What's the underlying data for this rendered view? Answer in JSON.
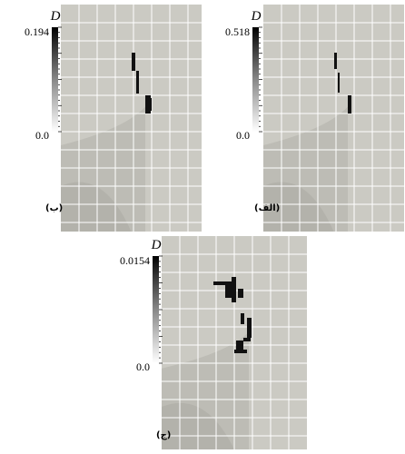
{
  "panels": [
    {
      "label": "(ب)",
      "colorbar": {
        "title": "D",
        "max": "0.194",
        "min": "0.0"
      }
    },
    {
      "label": "(الف)",
      "colorbar": {
        "title": "D",
        "max": "0.518",
        "min": "0.0"
      }
    },
    {
      "label": "(ج)",
      "colorbar": {
        "title": "D",
        "max": "0.0154",
        "min": "0.0"
      }
    }
  ]
}
